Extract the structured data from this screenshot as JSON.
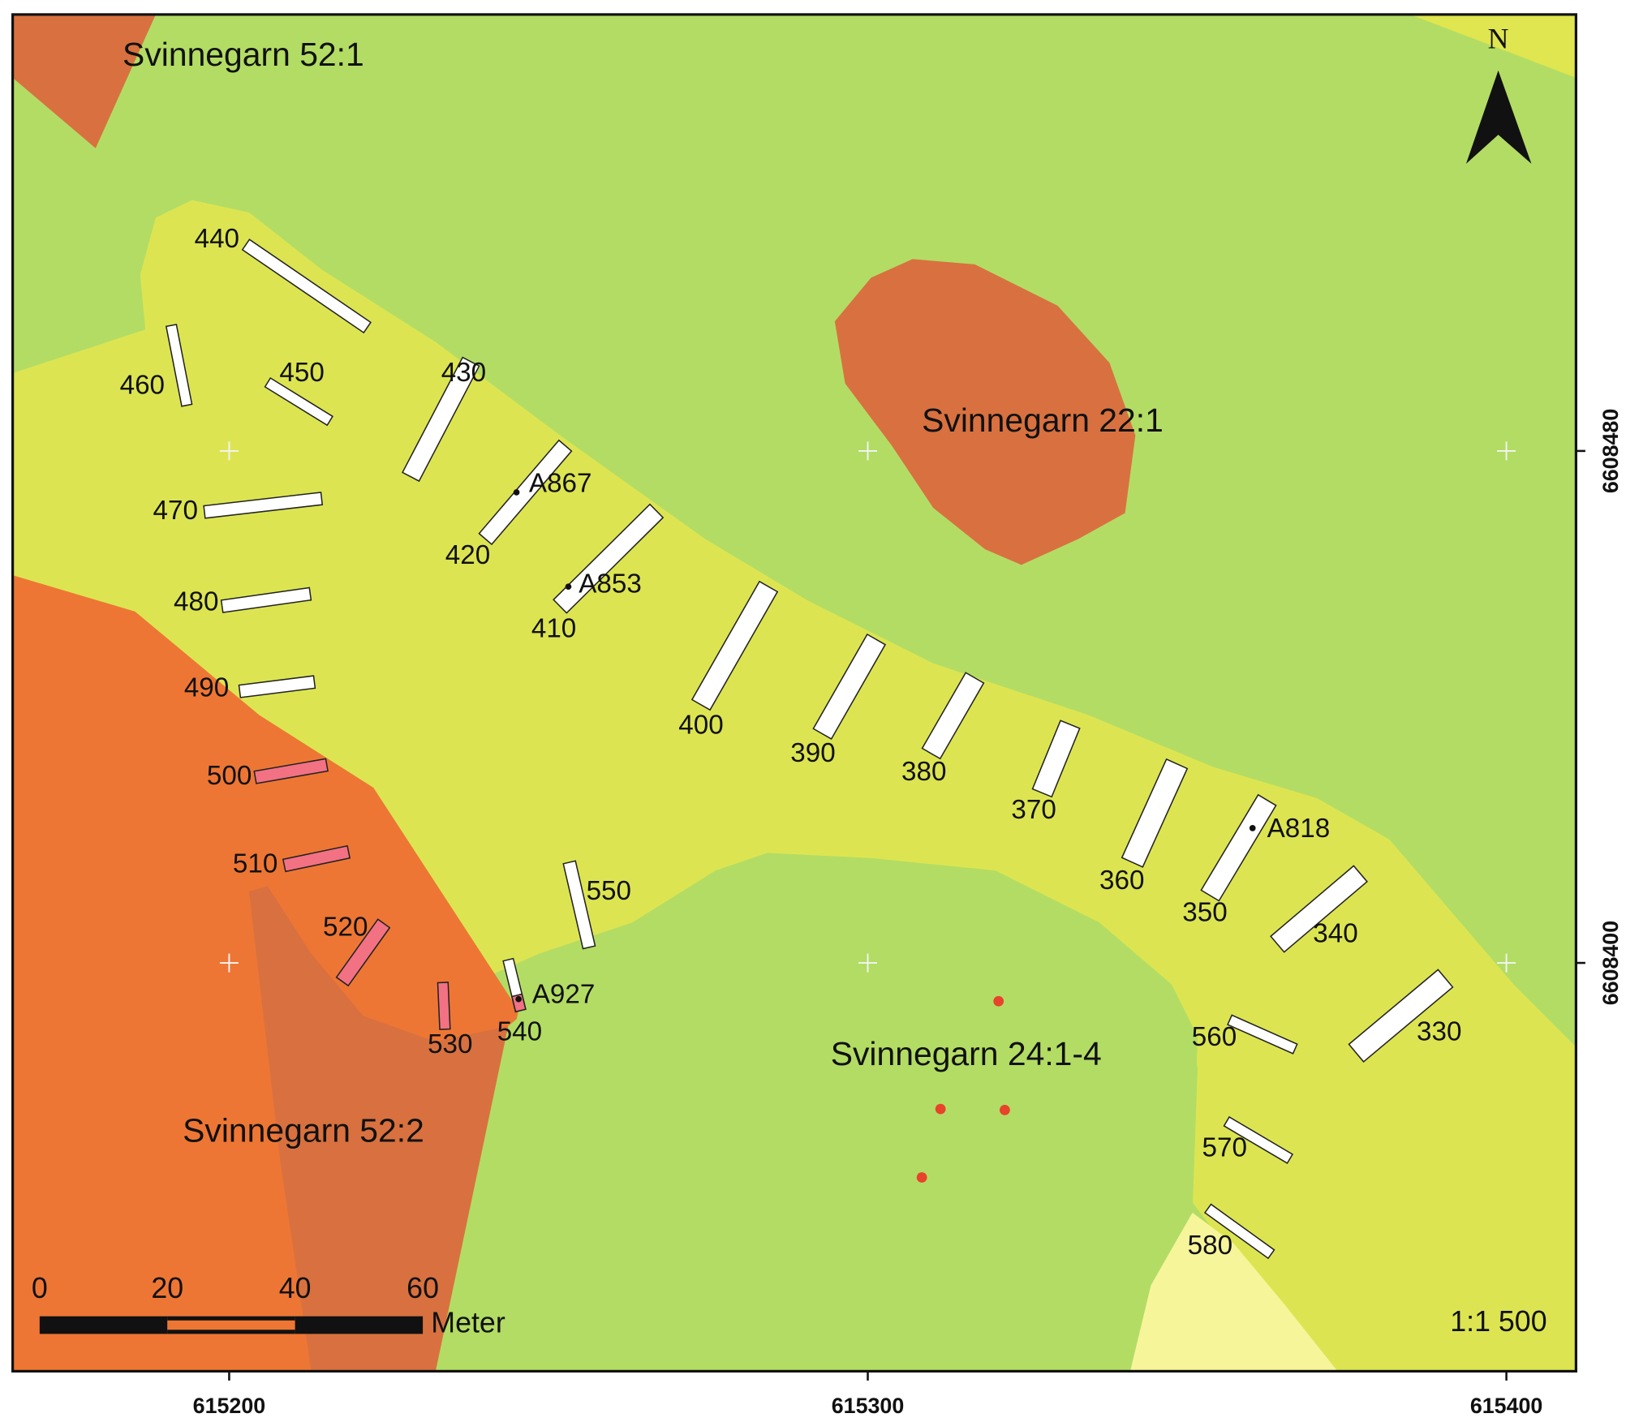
{
  "map": {
    "xlim": [
      615166.1,
      615410.9
    ],
    "ylim": [
      6608336.2,
      6608548.2
    ],
    "xticks": [
      615200,
      615300,
      615400
    ],
    "yticks": [
      6608400,
      6608480
    ],
    "north": "N",
    "scale": "1:1 500",
    "scale_bar": {
      "ticks": [
        0,
        20,
        40,
        60
      ],
      "unit": "Meter"
    },
    "places": [
      "Svinnegarn 52:1",
      "Svinnegarn 22:1",
      "Svinnegarn 24:1-4",
      "Svinnegarn 52:2"
    ],
    "trenches": [
      "440",
      "460",
      "450",
      "430",
      "420",
      "410",
      "470",
      "480",
      "490",
      "500",
      "510",
      "520",
      "530",
      "540",
      "550",
      "400",
      "390",
      "380",
      "370",
      "360",
      "350",
      "340",
      "330",
      "560",
      "570",
      "580"
    ],
    "features": [
      "A867",
      "A853",
      "A818",
      "A927"
    ]
  }
}
